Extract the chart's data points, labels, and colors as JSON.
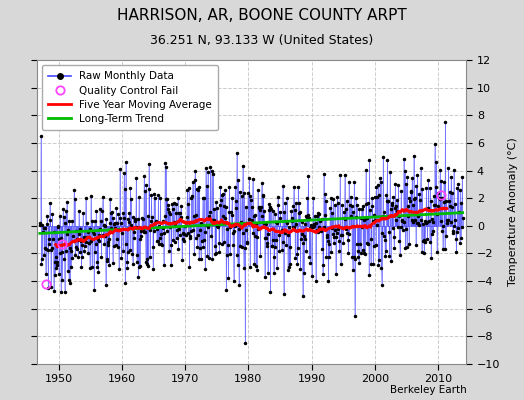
{
  "title": "HARRISON, AR, BOONE COUNTY ARPT",
  "subtitle": "36.251 N, 93.133 W (United States)",
  "ylabel": "Temperature Anomaly (°C)",
  "credit": "Berkeley Earth",
  "year_start": 1946.5,
  "year_end": 2014.5,
  "ylim": [
    -10,
    12
  ],
  "yticks": [
    -10,
    -8,
    -6,
    -4,
    -2,
    0,
    2,
    4,
    6,
    8,
    10,
    12
  ],
  "xticks": [
    1950,
    1960,
    1970,
    1980,
    1990,
    2000,
    2010
  ],
  "fig_bg_color": "#d8d8d8",
  "plot_bg_color": "#ffffff",
  "grid_color": "#cccccc",
  "line_color": "#4444ff",
  "dot_color": "#000000",
  "ma_color": "#ff0000",
  "trend_color": "#00bb00",
  "qc_color": "#ff44ff",
  "seed": 137
}
